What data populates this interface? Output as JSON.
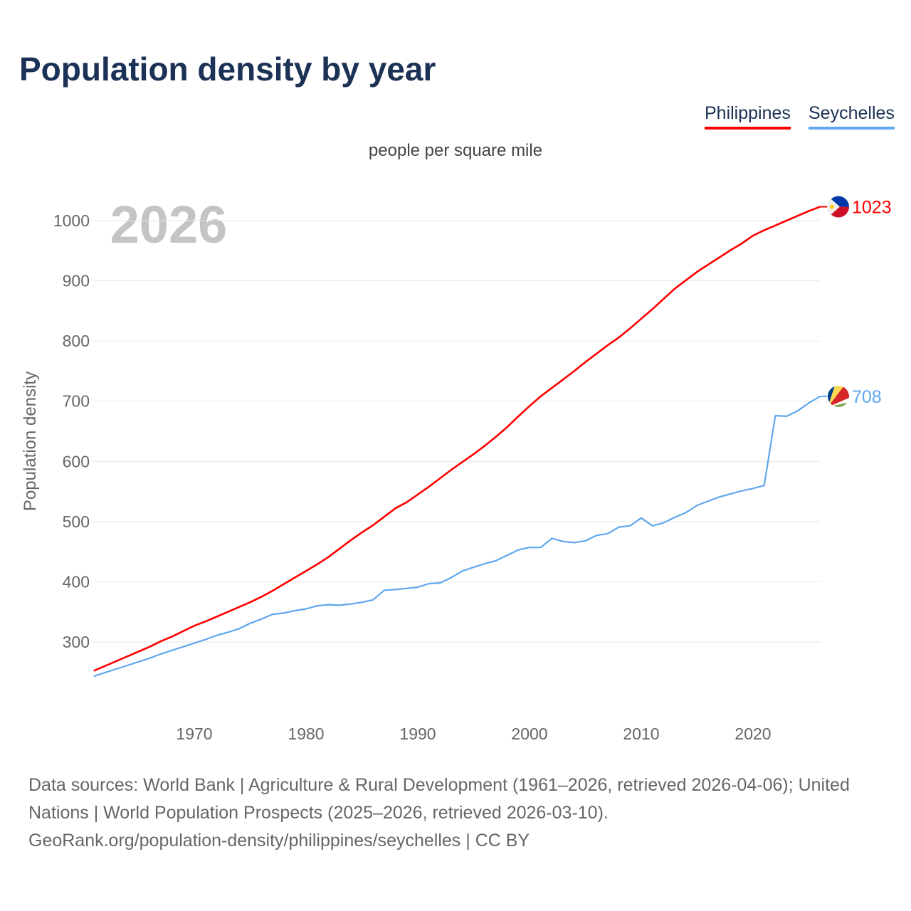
{
  "chart_data": {
    "type": "line",
    "title": "Population density by year",
    "subtitle": "people per square mile",
    "ylabel": "Population density",
    "xlabel": "",
    "year_label": "2026",
    "ylim": [
      200,
      1040
    ],
    "xlim": [
      1961,
      2026
    ],
    "yticks": [
      300,
      400,
      500,
      600,
      700,
      800,
      900,
      1000
    ],
    "xticks": [
      1970,
      1980,
      1990,
      2000,
      2010,
      2020
    ],
    "grid": true,
    "legend_position": "top-right",
    "x": [
      1961,
      1962,
      1963,
      1964,
      1965,
      1966,
      1967,
      1968,
      1969,
      1970,
      1971,
      1972,
      1973,
      1974,
      1975,
      1976,
      1977,
      1978,
      1979,
      1980,
      1981,
      1982,
      1983,
      1984,
      1985,
      1986,
      1987,
      1988,
      1989,
      1990,
      1991,
      1992,
      1993,
      1994,
      1995,
      1996,
      1997,
      1998,
      1999,
      2000,
      2001,
      2002,
      2003,
      2004,
      2005,
      2006,
      2007,
      2008,
      2009,
      2010,
      2011,
      2012,
      2013,
      2014,
      2015,
      2016,
      2017,
      2018,
      2019,
      2020,
      2021,
      2022,
      2023,
      2024,
      2025,
      2026
    ],
    "series": [
      {
        "name": "Philippines",
        "color": "#ff0000",
        "end_label": "1023",
        "values": [
          252,
          260,
          268,
          276,
          284,
          292,
          301,
          309,
          318,
          327,
          334,
          342,
          350,
          358,
          366,
          375,
          385,
          396,
          407,
          418,
          429,
          441,
          455,
          469,
          482,
          494,
          508,
          522,
          532,
          545,
          558,
          572,
          586,
          599,
          612,
          626,
          641,
          657,
          675,
          692,
          708,
          722,
          736,
          750,
          765,
          779,
          793,
          806,
          821,
          837,
          853,
          870,
          887,
          901,
          915,
          927,
          939,
          951,
          962,
          975,
          984,
          992,
          1000,
          1008,
          1016,
          1023
        ]
      },
      {
        "name": "Seychelles",
        "color": "#5fa7ee",
        "end_label": "708",
        "values": [
          243,
          249,
          255,
          261,
          267,
          273,
          280,
          286,
          292,
          298,
          304,
          311,
          316,
          322,
          331,
          338,
          346,
          348,
          352,
          355,
          360,
          362,
          361,
          363,
          366,
          370,
          386,
          387,
          389,
          391,
          397,
          398,
          407,
          418,
          424,
          430,
          435,
          444,
          453,
          457,
          457,
          472,
          467,
          465,
          468,
          477,
          480,
          491,
          493,
          506,
          493,
          498,
          507,
          515,
          527,
          534,
          541,
          546,
          551,
          555,
          560,
          676,
          675,
          684,
          697,
          708
        ]
      }
    ]
  },
  "footer": {
    "line1": "Data sources: World Bank | Agriculture & Rural Development (1961–2026, retrieved 2026-04-06); United Nations | World Population Prospects (2025–2026, retrieved 2026-03-10).",
    "line2": "GeoRank.org/population-density/philippines/seychelles | CC BY"
  }
}
